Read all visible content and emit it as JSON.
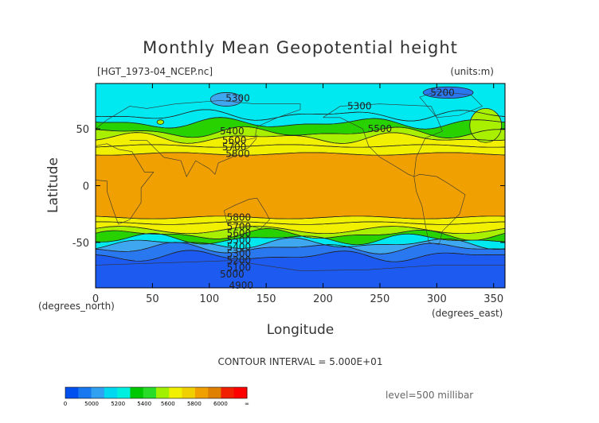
{
  "chart_data": {
    "type": "contour-map",
    "title": "Monthly Mean Geopotential height",
    "file_label": "[HGT_1973-04_NCEP.nc]",
    "units_label": "(units:m)",
    "xlabel": "Longitude",
    "ylabel": "Latitude",
    "x_unit_label": "(degrees_east)",
    "y_unit_label": "(degrees_north)",
    "xlim": [
      0,
      360
    ],
    "ylim": [
      -90,
      90
    ],
    "xticks": [
      0,
      50,
      100,
      150,
      200,
      250,
      300,
      350
    ],
    "yticks": [
      -50,
      0,
      50
    ],
    "contour_interval_text": "CONTOUR INTERVAL = 5.000E+01",
    "level_text": "level=500 millibar",
    "contour_labels": [
      {
        "text": "5300",
        "lon": 125,
        "lat": 77
      },
      {
        "text": "5300",
        "lon": 232,
        "lat": 70
      },
      {
        "text": "5200",
        "lon": 305,
        "lat": 82
      },
      {
        "text": "5400",
        "lon": 120,
        "lat": 48
      },
      {
        "text": "5500",
        "lon": 250,
        "lat": 50
      },
      {
        "text": "5600",
        "lon": 122,
        "lat": 40
      },
      {
        "text": "5700",
        "lon": 122,
        "lat": 34
      },
      {
        "text": "5800",
        "lon": 125,
        "lat": 28
      },
      {
        "text": "5800",
        "lon": 126,
        "lat": -28
      },
      {
        "text": "5700",
        "lon": 126,
        "lat": -36
      },
      {
        "text": "5600",
        "lon": 126,
        "lat": -42
      },
      {
        "text": "5500",
        "lon": 126,
        "lat": -48
      },
      {
        "text": "5400",
        "lon": 126,
        "lat": -54
      },
      {
        "text": "5300",
        "lon": 126,
        "lat": -60
      },
      {
        "text": "5200",
        "lon": 126,
        "lat": -66
      },
      {
        "text": "5100",
        "lon": 126,
        "lat": -72
      },
      {
        "text": "5000",
        "lon": 120,
        "lat": -78
      },
      {
        "text": "4900",
        "lon": 128,
        "lat": -88
      }
    ],
    "bands": [
      {
        "lat": [
          -90,
          -62
        ],
        "value": 4950
      },
      {
        "lat": [
          -62,
          -55
        ],
        "value": 5100
      },
      {
        "lat": [
          -55,
          -51
        ],
        "value": 5250
      },
      {
        "lat": [
          -51,
          -47
        ],
        "value": 5350
      },
      {
        "lat": [
          -47,
          -43
        ],
        "value": 5450
      },
      {
        "lat": [
          -43,
          -39
        ],
        "value": 5550
      },
      {
        "lat": [
          -39,
          -33
        ],
        "value": 5650
      },
      {
        "lat": [
          -33,
          -28
        ],
        "value": 5750
      },
      {
        "lat": [
          -28,
          28
        ],
        "value": 5850
      },
      {
        "lat": [
          28,
          35
        ],
        "value": 5750
      },
      {
        "lat": [
          35,
          42
        ],
        "value": 5650
      },
      {
        "lat": [
          42,
          47
        ],
        "value": 5550
      },
      {
        "lat": [
          47,
          55
        ],
        "value": 5450
      },
      {
        "lat": [
          55,
          62
        ],
        "value": 5350
      },
      {
        "lat": [
          62,
          90
        ],
        "value": 5300
      }
    ],
    "blobs": [
      {
        "lon": 115,
        "lat": 76,
        "rlon": 14,
        "rlat": 6,
        "value": 5250
      },
      {
        "lon": 310,
        "lat": 82,
        "rlon": 22,
        "rlat": 5,
        "value": 5150
      },
      {
        "lon": 343,
        "lat": 53,
        "rlon": 14,
        "rlat": 15,
        "value": 5550
      },
      {
        "lon": 57,
        "lat": 56,
        "rlon": 3,
        "rlat": 2,
        "value": 5550
      }
    ],
    "colorbar": {
      "ticks": [
        "0",
        "5000",
        "5200",
        "5400",
        "5600",
        "5800",
        "6000",
        "∞"
      ],
      "colors": [
        "#0050f0",
        "#1878f0",
        "#30a0f0",
        "#00d8f0",
        "#00f0e0",
        "#00c800",
        "#28dc28",
        "#a0f000",
        "#f0f000",
        "#f0d000",
        "#f0a000",
        "#e08000",
        "#f02000",
        "#ff0000"
      ]
    },
    "colors": {
      "4950": "#1c5af0",
      "5100": "#2a78f0",
      "5150": "#2a78f0",
      "5250": "#3fa6f0",
      "5300": "#00e8f0",
      "5350": "#00e8f0",
      "5450": "#28d200",
      "5550": "#a8f000",
      "5650": "#f0f000",
      "5750": "#f0f000",
      "5850": "#f0a000"
    }
  }
}
